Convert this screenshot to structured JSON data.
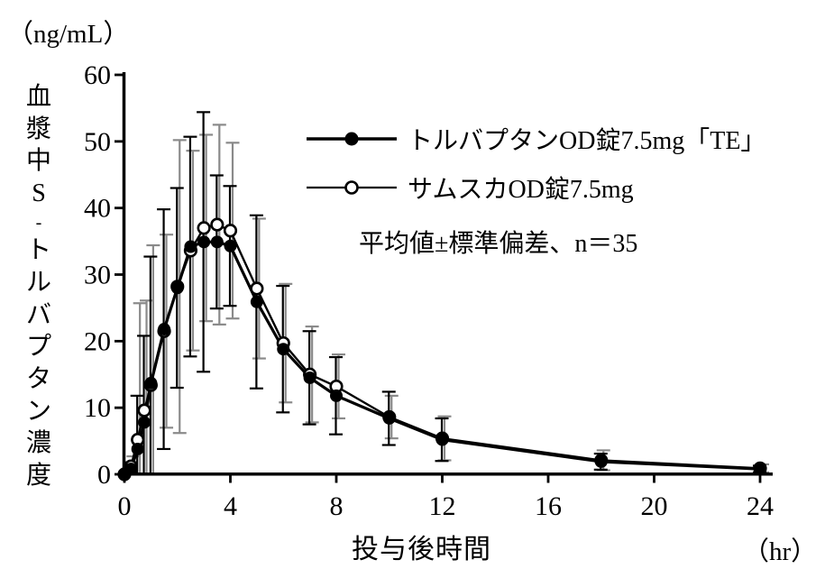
{
  "labels": {
    "y_unit": "（ng/mL）",
    "y_title": "血漿中S-トルバプタン濃度",
    "x_title": "投与後時間",
    "x_unit": "（hr）",
    "note": "平均値±標準偏差、n＝35"
  },
  "chart_data": {
    "type": "line",
    "title": "",
    "xlabel": "投与後時間 (hr)",
    "ylabel": "血漿中S-トルバプタン濃度 (ng/mL)",
    "xlim": [
      0,
      24
    ],
    "ylim": [
      0,
      60
    ],
    "xticks": [
      0,
      4,
      8,
      12,
      16,
      20,
      24
    ],
    "yticks": [
      0,
      10,
      20,
      30,
      40,
      50,
      60
    ],
    "grid": false,
    "legend_position": "inside-upper-right",
    "error_bars": "mean ± SD, n=35",
    "x": [
      0,
      0.25,
      0.5,
      0.75,
      1,
      1.5,
      2,
      2.5,
      3,
      3.5,
      4,
      5,
      6,
      7,
      8,
      10,
      12,
      18,
      24
    ],
    "series": [
      {
        "name": "トルバプタンOD錠7.5mg「TE」",
        "marker": "filled-circle",
        "color": "#000000",
        "errorbar_color": "#000000",
        "values": [
          0,
          0.8,
          3.8,
          7.8,
          13.7,
          21.8,
          28.0,
          34.2,
          34.9,
          34.9,
          34.3,
          25.9,
          18.8,
          14.5,
          11.8,
          8.4,
          5.2,
          1.9,
          0.8
        ],
        "sd": [
          0,
          1.0,
          8.0,
          13.0,
          19.0,
          18.0,
          15.0,
          16.5,
          19.5,
          10.0,
          9.0,
          13.0,
          9.5,
          7.0,
          5.8,
          4.0,
          3.2,
          1.2,
          0.5
        ]
      },
      {
        "name": "サムスカOD錠7.5mg",
        "marker": "open-circle",
        "color": "#000000",
        "errorbar_color": "#8a8a8a",
        "values": [
          0,
          1.2,
          5.2,
          9.6,
          13.4,
          21.5,
          28.2,
          33.6,
          37.0,
          37.5,
          36.6,
          27.9,
          19.7,
          15.0,
          13.2,
          8.6,
          5.4,
          2.1,
          0.9
        ],
        "sd": [
          0,
          1.5,
          20.5,
          16.5,
          21.0,
          14.5,
          22.0,
          15.0,
          14.0,
          15.0,
          13.2,
          10.5,
          8.9,
          7.2,
          4.8,
          3.2,
          3.3,
          1.5,
          0.6
        ]
      }
    ]
  }
}
